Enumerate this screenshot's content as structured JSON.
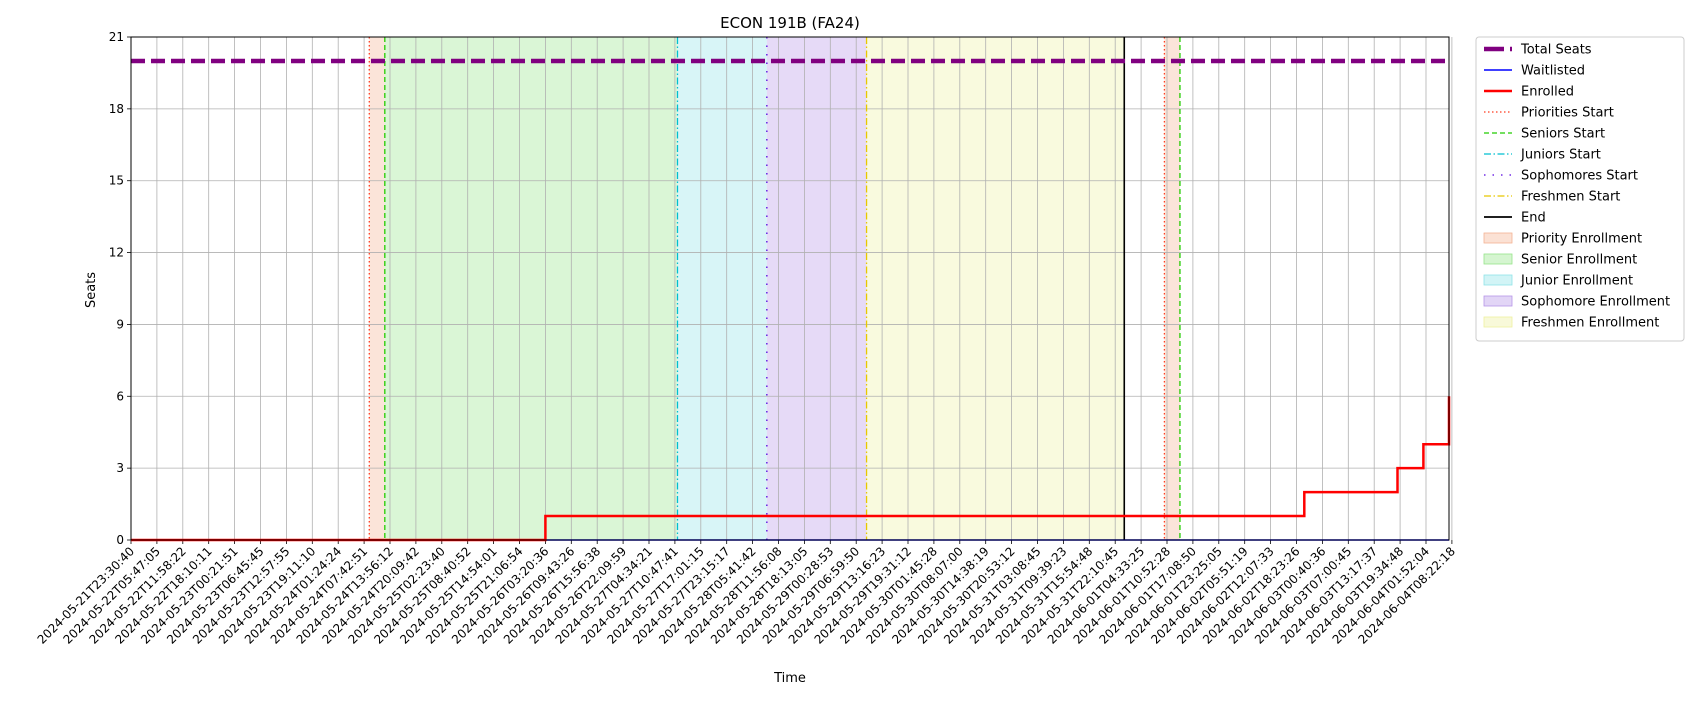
{
  "chart_data": {
    "type": "line",
    "title": "ECON 191B (FA24)",
    "xlabel": "Time",
    "ylabel": "Seats",
    "ylim": [
      0,
      21
    ],
    "yticks": [
      "0",
      "3",
      "6",
      "9",
      "12",
      "15",
      "18",
      "21"
    ],
    "grid": true,
    "legend_position": "outside-right",
    "x_tick_labels": [
      "2024-05-21T23:30:40",
      "2024-05-22T05:47:05",
      "2024-05-22T11:58:22",
      "2024-05-22T18:10:11",
      "2024-05-23T00:21:51",
      "2024-05-23T06:45:45",
      "2024-05-23T12:57:55",
      "2024-05-23T19:11:10",
      "2024-05-24T01:24:24",
      "2024-05-24T07:42:51",
      "2024-05-24T13:56:12",
      "2024-05-24T20:09:42",
      "2024-05-25T02:23:40",
      "2024-05-25T08:40:52",
      "2024-05-25T14:54:01",
      "2024-05-25T21:06:54",
      "2024-05-26T03:20:36",
      "2024-05-26T09:43:26",
      "2024-05-26T15:56:38",
      "2024-05-26T22:09:59",
      "2024-05-27T04:34:21",
      "2024-05-27T10:47:41",
      "2024-05-27T17:01:15",
      "2024-05-27T23:15:17",
      "2024-05-28T05:41:42",
      "2024-05-28T11:56:08",
      "2024-05-28T18:13:05",
      "2024-05-29T00:28:53",
      "2024-05-29T06:59:50",
      "2024-05-29T13:16:23",
      "2024-05-29T19:31:12",
      "2024-05-30T01:45:28",
      "2024-05-30T08:07:00",
      "2024-05-30T14:38:19",
      "2024-05-30T20:53:12",
      "2024-05-31T03:08:45",
      "2024-05-31T09:39:23",
      "2024-05-31T15:54:48",
      "2024-05-31T22:10:45",
      "2024-06-01T04:33:25",
      "2024-06-01T10:52:28",
      "2024-06-01T17:08:50",
      "2024-06-01T23:25:05",
      "2024-06-02T05:51:19",
      "2024-06-02T12:07:33",
      "2024-06-02T18:23:26",
      "2024-06-03T00:40:36",
      "2024-06-03T07:00:45",
      "2024-06-03T13:17:37",
      "2024-06-03T19:34:48",
      "2024-06-04T01:52:04",
      "2024-06-04T08:22:18"
    ],
    "series": [
      {
        "name": "Total Seats",
        "color": "#800080",
        "style": "dashed-thick",
        "points": [
          [
            0,
            20
          ],
          [
            51.5,
            20
          ]
        ]
      },
      {
        "name": "Waitlisted",
        "color": "#0000ff",
        "style": "solid",
        "points": [
          [
            0,
            0
          ],
          [
            51.5,
            0
          ]
        ]
      },
      {
        "name": "Enrolled",
        "color": "#ff0000",
        "style": "solid-thick",
        "points": [
          [
            0,
            0
          ],
          [
            16,
            0
          ],
          [
            16,
            1
          ],
          [
            45.3,
            1
          ],
          [
            45.3,
            2
          ],
          [
            48.9,
            2
          ],
          [
            48.9,
            3
          ],
          [
            49.9,
            3
          ],
          [
            49.9,
            4
          ],
          [
            51.35,
            4
          ],
          [
            51.35,
            5
          ],
          [
            51.45,
            5
          ],
          [
            51.45,
            6
          ]
        ]
      }
    ],
    "vlines": [
      {
        "name": "Priorities Start",
        "color": "#ff3b1f",
        "style": "dotted",
        "x": 9.2
      },
      {
        "name": "Seniors Start",
        "color": "#22cc00",
        "style": "dashed",
        "x": 9.8
      },
      {
        "name": "Juniors Start",
        "color": "#00bfd0",
        "style": "dashdot",
        "x": 21.1
      },
      {
        "name": "Sophomores Start",
        "color": "#5500e0",
        "style": "loosedot",
        "x": 24.55
      },
      {
        "name": "Freshmen Start",
        "color": "#e8c800",
        "style": "dashdot",
        "x": 28.4
      },
      {
        "name": "End",
        "color": "#000000",
        "style": "solid",
        "x": 38.35
      },
      {
        "name": "",
        "color": "#ff3b1f",
        "style": "dotted",
        "x": 39.9
      },
      {
        "name": "",
        "color": "#22cc00",
        "style": "dashed",
        "x": 40.5
      }
    ],
    "spans": [
      {
        "name": "Priority Enrollment",
        "color": "#f4b393",
        "x0": 9.2,
        "x1": 9.8
      },
      {
        "name": "Senior Enrollment",
        "color": "#96e58a",
        "x0": 9.8,
        "x1": 21.1
      },
      {
        "name": "Junior Enrollment",
        "color": "#8fe3e8",
        "x0": 21.1,
        "x1": 24.55
      },
      {
        "name": "Sophomore Enrollment",
        "color": "#b795e8",
        "x0": 24.55,
        "x1": 28.4
      },
      {
        "name": "Freshmen Enrollment",
        "color": "#eef0a0",
        "x0": 28.4,
        "x1": 38.35
      },
      {
        "name": "",
        "color": "#f4b393",
        "x0": 39.9,
        "x1": 40.5
      }
    ],
    "legend": [
      {
        "label": "Total Seats",
        "kind": "line",
        "color": "#800080",
        "style": "dashed-thick"
      },
      {
        "label": "Waitlisted",
        "kind": "line",
        "color": "#0000ff",
        "style": "solid"
      },
      {
        "label": "Enrolled",
        "kind": "line",
        "color": "#ff0000",
        "style": "solid-thick"
      },
      {
        "label": "Priorities Start",
        "kind": "line",
        "color": "#ff3b1f",
        "style": "dotted"
      },
      {
        "label": "Seniors Start",
        "kind": "line",
        "color": "#22cc00",
        "style": "dashed"
      },
      {
        "label": "Juniors Start",
        "kind": "line",
        "color": "#00bfd0",
        "style": "dashdot"
      },
      {
        "label": "Sophomores Start",
        "kind": "line",
        "color": "#5500e0",
        "style": "loosedot"
      },
      {
        "label": "Freshmen Start",
        "kind": "line",
        "color": "#e8c800",
        "style": "dashdot"
      },
      {
        "label": "End",
        "kind": "line",
        "color": "#000000",
        "style": "solid"
      },
      {
        "label": "Priority Enrollment",
        "kind": "patch",
        "color": "#f4b393"
      },
      {
        "label": "Senior Enrollment",
        "kind": "patch",
        "color": "#96e58a"
      },
      {
        "label": "Junior Enrollment",
        "kind": "patch",
        "color": "#8fe3e8"
      },
      {
        "label": "Sophomore Enrollment",
        "kind": "patch",
        "color": "#b795e8"
      },
      {
        "label": "Freshmen Enrollment",
        "kind": "patch",
        "color": "#eef0a0"
      }
    ]
  }
}
